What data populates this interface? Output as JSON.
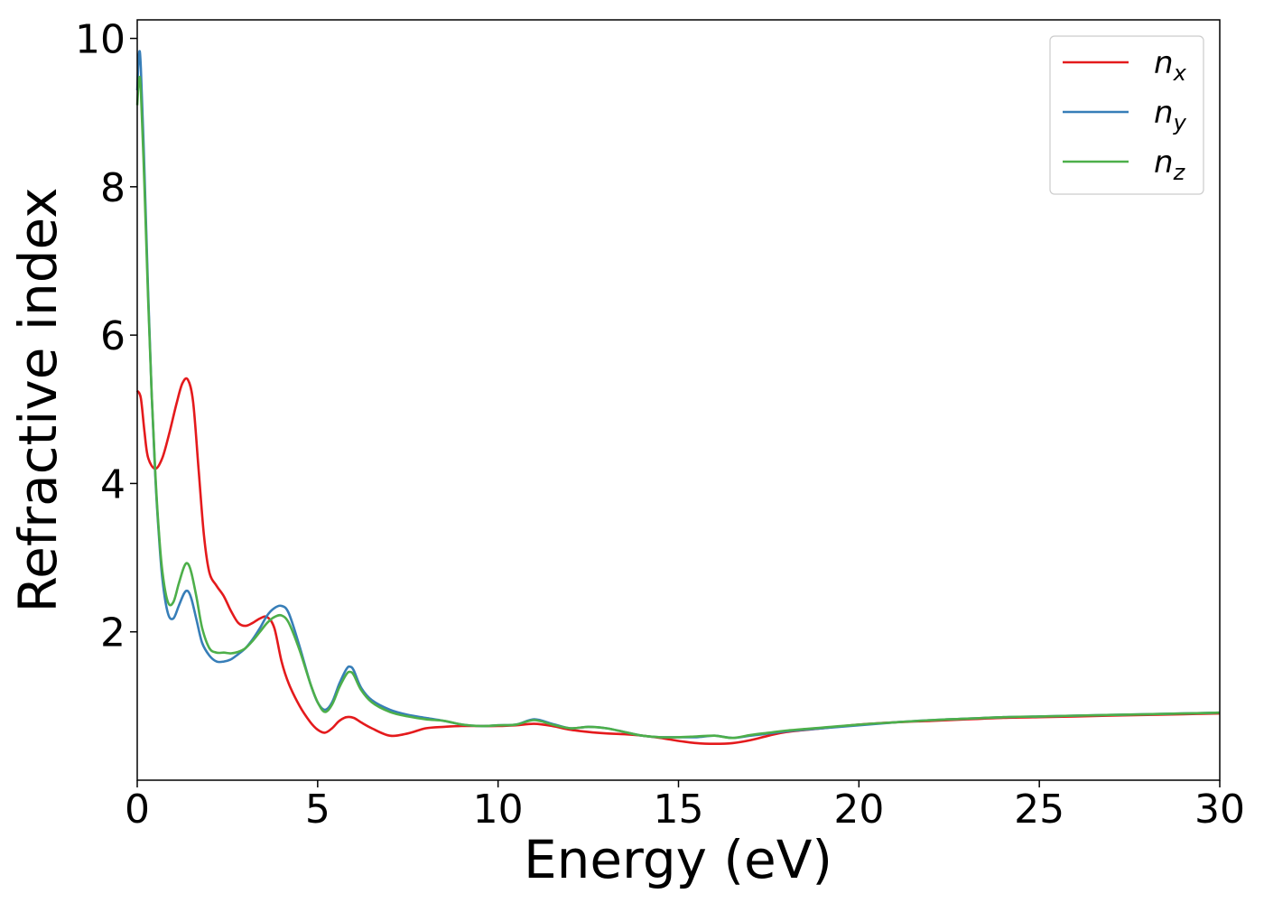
{
  "chart_data": {
    "type": "line",
    "title": "",
    "xlabel": "Energy (eV)",
    "ylabel": "Refractive index",
    "xlim": [
      0,
      30
    ],
    "ylim": [
      0,
      10.25
    ],
    "xticks": [
      0,
      5,
      10,
      15,
      20,
      25,
      30
    ],
    "yticks": [
      2,
      4,
      6,
      8,
      10
    ],
    "grid": false,
    "legend_position": "top-right",
    "series": [
      {
        "name": "n",
        "subscript": "x",
        "color": "#e41a1c",
        "x": [
          0,
          0.1,
          0.2,
          0.3,
          0.5,
          0.7,
          0.9,
          1.1,
          1.25,
          1.4,
          1.55,
          1.7,
          1.85,
          2.0,
          2.2,
          2.4,
          2.6,
          2.8,
          3.0,
          3.2,
          3.4,
          3.6,
          3.8,
          4.0,
          4.2,
          4.5,
          4.8,
          5.0,
          5.2,
          5.4,
          5.6,
          5.8,
          6.0,
          6.2,
          6.5,
          7.0,
          7.5,
          8.0,
          8.5,
          9.0,
          9.5,
          10.0,
          10.5,
          11.0,
          11.5,
          12.0,
          12.5,
          13.0,
          13.5,
          14.0,
          14.5,
          15.0,
          15.5,
          16.0,
          16.5,
          17.0,
          17.5,
          18.0,
          19.0,
          20.0,
          21.0,
          22.0,
          23.0,
          24.0,
          25.0,
          26.0,
          27.0,
          28.0,
          29.0,
          30.0
        ],
        "values": [
          5.25,
          5.15,
          4.7,
          4.35,
          4.2,
          4.35,
          4.7,
          5.1,
          5.35,
          5.4,
          5.1,
          4.2,
          3.3,
          2.8,
          2.62,
          2.48,
          2.28,
          2.12,
          2.08,
          2.12,
          2.18,
          2.2,
          2.05,
          1.6,
          1.3,
          1.0,
          0.78,
          0.68,
          0.64,
          0.7,
          0.8,
          0.85,
          0.84,
          0.78,
          0.7,
          0.6,
          0.63,
          0.7,
          0.72,
          0.73,
          0.73,
          0.73,
          0.74,
          0.76,
          0.73,
          0.68,
          0.65,
          0.63,
          0.62,
          0.6,
          0.57,
          0.53,
          0.5,
          0.49,
          0.5,
          0.54,
          0.6,
          0.65,
          0.7,
          0.75,
          0.78,
          0.8,
          0.82,
          0.84,
          0.85,
          0.86,
          0.87,
          0.88,
          0.89,
          0.9
        ]
      },
      {
        "name": "n",
        "subscript": "y",
        "color": "#377eb8",
        "x": [
          0,
          0.05,
          0.1,
          0.2,
          0.3,
          0.4,
          0.5,
          0.6,
          0.7,
          0.85,
          1.0,
          1.15,
          1.3,
          1.4,
          1.5,
          1.65,
          1.8,
          2.0,
          2.2,
          2.4,
          2.6,
          2.8,
          3.0,
          3.2,
          3.4,
          3.6,
          3.8,
          4.0,
          4.2,
          4.5,
          4.8,
          5.0,
          5.2,
          5.4,
          5.6,
          5.8,
          5.9,
          6.0,
          6.2,
          6.5,
          7.0,
          7.5,
          8.0,
          8.5,
          9.0,
          9.5,
          10.0,
          10.5,
          11.0,
          11.5,
          12.0,
          12.5,
          13.0,
          13.5,
          14.0,
          14.5,
          15.0,
          15.5,
          16.0,
          16.5,
          17.0,
          17.5,
          18.0,
          19.0,
          20.0,
          21.0,
          22.0,
          23.0,
          24.0,
          25.0,
          26.0,
          27.0,
          28.0,
          29.0,
          30.0
        ],
        "values": [
          9.3,
          9.8,
          9.6,
          8.2,
          6.6,
          5.2,
          4.1,
          3.3,
          2.7,
          2.25,
          2.18,
          2.35,
          2.52,
          2.55,
          2.45,
          2.15,
          1.85,
          1.68,
          1.6,
          1.6,
          1.63,
          1.7,
          1.78,
          1.9,
          2.05,
          2.22,
          2.32,
          2.35,
          2.25,
          1.8,
          1.3,
          1.05,
          0.95,
          1.05,
          1.3,
          1.5,
          1.53,
          1.48,
          1.25,
          1.08,
          0.95,
          0.88,
          0.84,
          0.8,
          0.75,
          0.73,
          0.74,
          0.75,
          0.82,
          0.76,
          0.7,
          0.72,
          0.7,
          0.65,
          0.6,
          0.58,
          0.58,
          0.58,
          0.6,
          0.57,
          0.6,
          0.63,
          0.66,
          0.7,
          0.74,
          0.78,
          0.81,
          0.83,
          0.85,
          0.86,
          0.87,
          0.88,
          0.89,
          0.9,
          0.91
        ]
      },
      {
        "name": "n",
        "subscript": "z",
        "color": "#4daf4a",
        "x": [
          0,
          0.05,
          0.1,
          0.2,
          0.3,
          0.4,
          0.5,
          0.6,
          0.7,
          0.85,
          1.0,
          1.15,
          1.3,
          1.4,
          1.5,
          1.65,
          1.8,
          2.0,
          2.2,
          2.4,
          2.6,
          2.8,
          3.0,
          3.2,
          3.4,
          3.6,
          3.8,
          4.0,
          4.2,
          4.5,
          4.8,
          5.0,
          5.2,
          5.4,
          5.6,
          5.8,
          5.9,
          6.0,
          6.2,
          6.5,
          7.0,
          7.5,
          8.0,
          8.5,
          9.0,
          9.5,
          10.0,
          10.5,
          11.0,
          11.5,
          12.0,
          12.5,
          13.0,
          13.5,
          14.0,
          14.5,
          15.0,
          15.5,
          16.0,
          16.5,
          17.0,
          17.5,
          18.0,
          19.0,
          20.0,
          21.0,
          22.0,
          23.0,
          24.0,
          25.0,
          26.0,
          27.0,
          28.0,
          29.0,
          30.0
        ],
        "values": [
          9.1,
          9.45,
          9.3,
          8.0,
          6.5,
          5.2,
          4.15,
          3.35,
          2.8,
          2.4,
          2.4,
          2.65,
          2.88,
          2.92,
          2.8,
          2.45,
          2.05,
          1.78,
          1.72,
          1.72,
          1.71,
          1.73,
          1.78,
          1.88,
          2.0,
          2.12,
          2.2,
          2.22,
          2.12,
          1.75,
          1.3,
          1.05,
          0.92,
          1.02,
          1.25,
          1.43,
          1.46,
          1.42,
          1.22,
          1.05,
          0.92,
          0.86,
          0.82,
          0.8,
          0.75,
          0.73,
          0.74,
          0.75,
          0.81,
          0.75,
          0.7,
          0.72,
          0.7,
          0.65,
          0.6,
          0.58,
          0.58,
          0.59,
          0.6,
          0.57,
          0.61,
          0.64,
          0.67,
          0.71,
          0.75,
          0.78,
          0.81,
          0.83,
          0.85,
          0.86,
          0.87,
          0.88,
          0.89,
          0.9,
          0.91
        ]
      }
    ]
  }
}
